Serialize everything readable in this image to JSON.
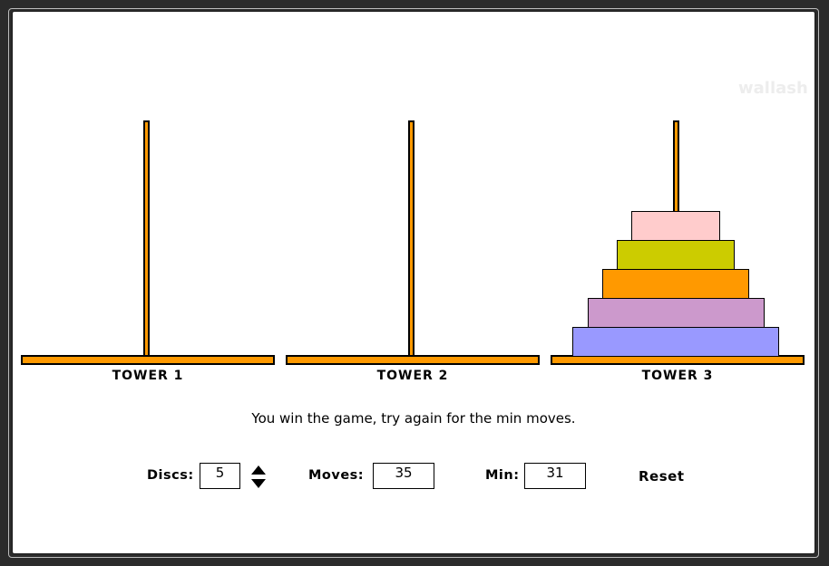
{
  "watermark": "wallash",
  "towers": [
    {
      "label": "TOWER 1",
      "discs": []
    },
    {
      "label": "TOWER 2",
      "discs": []
    },
    {
      "label": "TOWER 3",
      "discs": [
        {
          "name": "disc-5",
          "size_rank": 5,
          "color": "#9999ff"
        },
        {
          "name": "disc-4",
          "size_rank": 4,
          "color": "#cc99cc"
        },
        {
          "name": "disc-3",
          "size_rank": 3,
          "color": "#ff9900"
        },
        {
          "name": "disc-2",
          "size_rank": 2,
          "color": "#cccc00"
        },
        {
          "name": "disc-1",
          "size_rank": 1,
          "color": "#ffcccc"
        }
      ]
    }
  ],
  "colors": {
    "pole": "#ff9900",
    "outline": "#000000",
    "background": "#ffffff"
  },
  "message": "You win the game, try again for the min moves.",
  "controls": {
    "discs_label": "Discs:",
    "discs_value": "5",
    "moves_label": "Moves:",
    "moves_value": "35",
    "min_label": "Min:",
    "min_value": "31",
    "reset_label": "Reset"
  }
}
